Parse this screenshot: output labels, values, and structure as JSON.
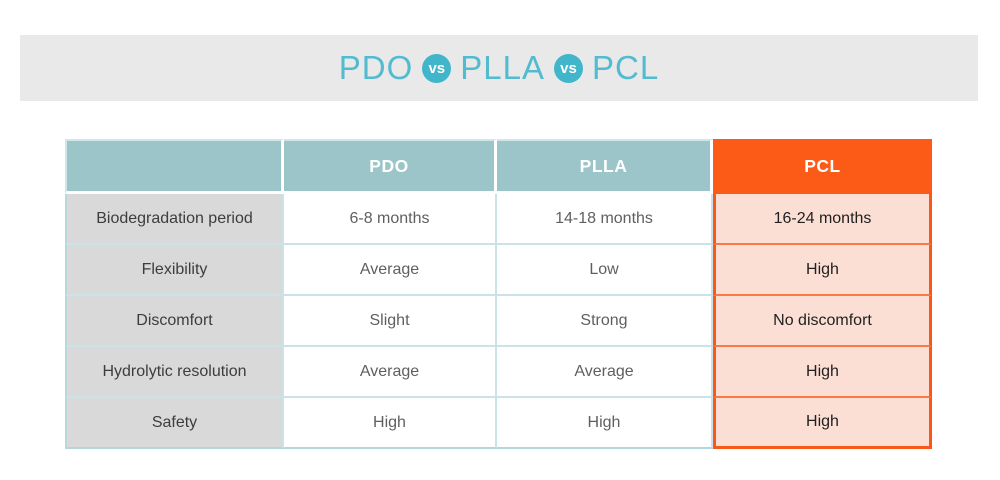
{
  "title": {
    "parts": [
      "PDO",
      "PLLA",
      "PCL"
    ],
    "vs_label": "vs"
  },
  "table": {
    "header": {
      "col0": "",
      "col1": "PDO",
      "col2": "PLLA",
      "col3": "PCL"
    },
    "rows": [
      {
        "label": "Biodegradation period",
        "pdo": "6-8 months",
        "plla": "14-18 months",
        "pcl": "16-24 months"
      },
      {
        "label": "Flexibility",
        "pdo": "Average",
        "plla": "Low",
        "pcl": "High"
      },
      {
        "label": "Discomfort",
        "pdo": "Slight",
        "plla": "Strong",
        "pcl": "No discomfort"
      },
      {
        "label": "Hydrolytic resolution",
        "pdo": "Average",
        "plla": "Average",
        "pcl": "High"
      },
      {
        "label": "Safety",
        "pdo": "High",
        "plla": "High",
        "pcl": "High"
      }
    ]
  },
  "colors": {
    "accent_teal": "#52bbd0",
    "vs_badge_teal": "#41b5ca",
    "header_teal": "#9bc5c8",
    "highlight_orange": "#fb5a17",
    "highlight_fill": "#fcdfd4",
    "label_gray": "#d9d9d9",
    "banner_gray": "#e9e9ea"
  }
}
